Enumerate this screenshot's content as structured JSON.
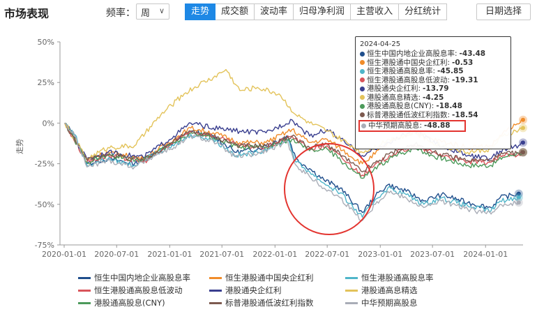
{
  "header": {
    "title": "市场表现",
    "freq_label": "频率：",
    "freq_value": "周",
    "tabs": [
      "走势",
      "成交额",
      "波动率",
      "归母净利润",
      "主营收入",
      "分红统计"
    ],
    "active_tab": 0,
    "date_button": "日期选择"
  },
  "chart_data": {
    "type": "line",
    "ylabel": "走势",
    "yticks": [
      "50%",
      "25%",
      "0%",
      "-25%",
      "-50%",
      "-75%"
    ],
    "ylim": [
      -75,
      50
    ],
    "xticks": [
      "2020-01-01",
      "2020-07-01",
      "2021-01-01",
      "2021-07-01",
      "2022-01-01",
      "2022-07-01",
      "2023-01-01",
      "2023-07-01",
      "2024-01-01"
    ],
    "x_range": [
      "2020-01-01",
      "2024-05-10"
    ],
    "grid": false,
    "legend_position": "bottom",
    "series": [
      {
        "name": "恒生中国内地企业高股息率",
        "color": "#1f4e8c",
        "points": [
          [
            "2020-01-03",
            0
          ],
          [
            "2020-02-07",
            -8
          ],
          [
            "2020-03-20",
            -25
          ],
          [
            "2020-06-01",
            -22
          ],
          [
            "2020-09-01",
            -25
          ],
          [
            "2020-11-20",
            -18
          ],
          [
            "2021-01-15",
            -12
          ],
          [
            "2021-03-15",
            -5
          ],
          [
            "2021-06-01",
            -8
          ],
          [
            "2021-08-20",
            -18
          ],
          [
            "2021-11-01",
            -16
          ],
          [
            "2022-02-15",
            -8
          ],
          [
            "2022-03-15",
            -22
          ],
          [
            "2022-05-01",
            -28
          ],
          [
            "2022-06-20",
            -35
          ],
          [
            "2022-08-15",
            -40
          ],
          [
            "2022-10-31",
            -55
          ],
          [
            "2022-12-15",
            -45
          ],
          [
            "2023-01-27",
            -38
          ],
          [
            "2023-04-01",
            -42
          ],
          [
            "2023-06-01",
            -48
          ],
          [
            "2023-08-01",
            -44
          ],
          [
            "2023-10-31",
            -49
          ],
          [
            "2024-01-20",
            -52
          ],
          [
            "2024-02-20",
            -46
          ],
          [
            "2024-04-25",
            -43.48
          ]
        ]
      },
      {
        "name": "恒生港股通中国央企红利",
        "color": "#f08c2a",
        "points": [
          [
            "2020-01-03",
            0
          ],
          [
            "2020-03-20",
            -22
          ],
          [
            "2020-06-01",
            -18
          ],
          [
            "2020-10-01",
            -22
          ],
          [
            "2021-01-15",
            -10
          ],
          [
            "2021-03-15",
            -3
          ],
          [
            "2021-06-01",
            -6
          ],
          [
            "2021-09-01",
            -12
          ],
          [
            "2021-12-01",
            -12
          ],
          [
            "2022-03-01",
            -4
          ],
          [
            "2022-05-01",
            -12
          ],
          [
            "2022-07-01",
            -10
          ],
          [
            "2022-10-31",
            -25
          ],
          [
            "2023-02-01",
            -12
          ],
          [
            "2023-05-01",
            -5
          ],
          [
            "2023-07-01",
            -10
          ],
          [
            "2023-10-31",
            -15
          ],
          [
            "2024-01-20",
            -14
          ],
          [
            "2024-03-01",
            -6
          ],
          [
            "2024-04-25",
            -0.53
          ],
          [
            "2024-05-10",
            2
          ]
        ]
      },
      {
        "name": "恒生港股通高股息率",
        "color": "#4fb5c9",
        "points": [
          [
            "2020-01-03",
            0
          ],
          [
            "2020-02-07",
            -7
          ],
          [
            "2020-03-20",
            -26
          ],
          [
            "2020-06-01",
            -22
          ],
          [
            "2020-09-01",
            -26
          ],
          [
            "2020-11-20",
            -18
          ],
          [
            "2021-01-15",
            -14
          ],
          [
            "2021-03-15",
            -7
          ],
          [
            "2021-06-01",
            -10
          ],
          [
            "2021-08-20",
            -20
          ],
          [
            "2021-11-01",
            -18
          ],
          [
            "2022-02-15",
            -10
          ],
          [
            "2022-03-15",
            -24
          ],
          [
            "2022-05-01",
            -30
          ],
          [
            "2022-06-20",
            -37
          ],
          [
            "2022-08-15",
            -43
          ],
          [
            "2022-10-31",
            -58
          ],
          [
            "2022-12-15",
            -47
          ],
          [
            "2023-01-27",
            -40
          ],
          [
            "2023-04-01",
            -44
          ],
          [
            "2023-06-01",
            -50
          ],
          [
            "2023-08-01",
            -46
          ],
          [
            "2023-10-31",
            -51
          ],
          [
            "2024-01-20",
            -54
          ],
          [
            "2024-02-20",
            -48
          ],
          [
            "2024-04-25",
            -45.85
          ]
        ]
      },
      {
        "name": "恒生港股通高股息低波动",
        "color": "#d9545a",
        "points": [
          [
            "2020-01-03",
            0
          ],
          [
            "2020-03-20",
            -24
          ],
          [
            "2020-06-01",
            -20
          ],
          [
            "2020-10-01",
            -24
          ],
          [
            "2021-01-15",
            -12
          ],
          [
            "2021-03-15",
            -5
          ],
          [
            "2021-06-01",
            -8
          ],
          [
            "2021-09-01",
            -14
          ],
          [
            "2021-12-01",
            -15
          ],
          [
            "2022-03-01",
            -8
          ],
          [
            "2022-05-01",
            -16
          ],
          [
            "2022-07-01",
            -14
          ],
          [
            "2022-10-31",
            -32
          ],
          [
            "2023-02-01",
            -20
          ],
          [
            "2023-05-01",
            -14
          ],
          [
            "2023-07-01",
            -18
          ],
          [
            "2023-10-31",
            -24
          ],
          [
            "2024-01-20",
            -24
          ],
          [
            "2024-03-01",
            -20
          ],
          [
            "2024-04-25",
            -19.31
          ],
          [
            "2024-05-10",
            -18
          ]
        ]
      },
      {
        "name": "港股通央企红利",
        "color": "#3a3f8f",
        "points": [
          [
            "2020-01-03",
            0
          ],
          [
            "2020-03-20",
            -22
          ],
          [
            "2020-06-01",
            -18
          ],
          [
            "2020-10-01",
            -21
          ],
          [
            "2021-01-15",
            -8
          ],
          [
            "2021-03-15",
            0
          ],
          [
            "2021-06-01",
            -3
          ],
          [
            "2021-09-01",
            -5
          ],
          [
            "2021-12-01",
            -6
          ],
          [
            "2022-03-01",
            2
          ],
          [
            "2022-05-01",
            -8
          ],
          [
            "2022-07-01",
            -4
          ],
          [
            "2022-10-31",
            -20
          ],
          [
            "2023-02-01",
            -12
          ],
          [
            "2023-05-01",
            -4
          ],
          [
            "2023-07-01",
            -12
          ],
          [
            "2023-10-31",
            -20
          ],
          [
            "2024-01-20",
            -22
          ],
          [
            "2024-03-01",
            -16
          ],
          [
            "2024-04-25",
            -13.79
          ],
          [
            "2024-05-10",
            -12
          ]
        ]
      },
      {
        "name": "港股通高息精选",
        "color": "#e3c35a",
        "points": [
          [
            "2020-01-03",
            0
          ],
          [
            "2020-03-20",
            -22
          ],
          [
            "2020-06-01",
            -15
          ],
          [
            "2020-09-01",
            -14
          ],
          [
            "2020-12-01",
            5
          ],
          [
            "2021-02-20",
            18
          ],
          [
            "2021-04-15",
            24
          ],
          [
            "2021-06-01",
            28
          ],
          [
            "2021-07-15",
            33
          ],
          [
            "2021-09-01",
            20
          ],
          [
            "2021-11-01",
            22
          ],
          [
            "2022-01-15",
            18
          ],
          [
            "2022-03-15",
            5
          ],
          [
            "2022-05-01",
            0
          ],
          [
            "2022-07-01",
            -5
          ],
          [
            "2022-10-31",
            -18
          ],
          [
            "2023-02-01",
            -10
          ],
          [
            "2023-05-01",
            -6
          ],
          [
            "2023-07-01",
            -12
          ],
          [
            "2023-10-31",
            -18
          ],
          [
            "2024-01-20",
            -16
          ],
          [
            "2024-03-01",
            -8
          ],
          [
            "2024-04-25",
            -4.25
          ],
          [
            "2024-05-10",
            -3
          ]
        ]
      },
      {
        "name": "港股通高股息(CNY)",
        "color": "#4c9a5b",
        "points": [
          [
            "2020-01-03",
            0
          ],
          [
            "2020-03-20",
            -24
          ],
          [
            "2020-06-01",
            -20
          ],
          [
            "2020-10-01",
            -23
          ],
          [
            "2021-01-15",
            -12
          ],
          [
            "2021-03-15",
            -6
          ],
          [
            "2021-06-01",
            -9
          ],
          [
            "2021-09-01",
            -15
          ],
          [
            "2021-12-01",
            -15
          ],
          [
            "2022-03-01",
            -10
          ],
          [
            "2022-05-01",
            -17
          ],
          [
            "2022-07-01",
            -16
          ],
          [
            "2022-10-31",
            -34
          ],
          [
            "2023-02-01",
            -22
          ],
          [
            "2023-05-01",
            -15
          ],
          [
            "2023-07-01",
            -20
          ],
          [
            "2023-10-31",
            -26
          ],
          [
            "2024-01-20",
            -26
          ],
          [
            "2024-03-01",
            -21
          ],
          [
            "2024-04-25",
            -18.48
          ],
          [
            "2024-05-10",
            -18
          ]
        ]
      },
      {
        "name": "标普港股通低波红利指数",
        "color": "#7d5a4f",
        "points": [
          [
            "2020-01-03",
            0
          ],
          [
            "2020-03-20",
            -23
          ],
          [
            "2020-06-01",
            -19
          ],
          [
            "2020-10-01",
            -23
          ],
          [
            "2021-01-15",
            -11
          ],
          [
            "2021-03-15",
            -5
          ],
          [
            "2021-06-01",
            -8
          ],
          [
            "2021-09-01",
            -14
          ],
          [
            "2021-12-01",
            -14
          ],
          [
            "2022-03-01",
            -8
          ],
          [
            "2022-05-01",
            -15
          ],
          [
            "2022-07-01",
            -13
          ],
          [
            "2022-10-31",
            -30
          ],
          [
            "2023-02-01",
            -19
          ],
          [
            "2023-05-01",
            -13
          ],
          [
            "2023-07-01",
            -18
          ],
          [
            "2023-10-31",
            -23
          ],
          [
            "2024-01-20",
            -23
          ],
          [
            "2024-03-01",
            -19
          ],
          [
            "2024-04-25",
            -18.54
          ],
          [
            "2024-05-10",
            -18
          ]
        ]
      },
      {
        "name": "中华预期高股息",
        "color": "#a9adb7",
        "points": [
          [
            "2020-01-03",
            0
          ],
          [
            "2020-02-07",
            -8
          ],
          [
            "2020-03-20",
            -27
          ],
          [
            "2020-06-01",
            -23
          ],
          [
            "2020-09-01",
            -27
          ],
          [
            "2020-11-20",
            -19
          ],
          [
            "2021-01-15",
            -15
          ],
          [
            "2021-03-15",
            -8
          ],
          [
            "2021-06-01",
            -11
          ],
          [
            "2021-08-20",
            -21
          ],
          [
            "2021-11-01",
            -19
          ],
          [
            "2022-02-15",
            -12
          ],
          [
            "2022-03-15",
            -26
          ],
          [
            "2022-05-01",
            -33
          ],
          [
            "2022-06-20",
            -40
          ],
          [
            "2022-08-15",
            -46
          ],
          [
            "2022-10-31",
            -60
          ],
          [
            "2022-12-15",
            -50
          ],
          [
            "2023-01-27",
            -42
          ],
          [
            "2023-04-01",
            -46
          ],
          [
            "2023-06-01",
            -52
          ],
          [
            "2023-08-01",
            -48
          ],
          [
            "2023-10-31",
            -53
          ],
          [
            "2024-01-20",
            -56
          ],
          [
            "2024-02-20",
            -50
          ],
          [
            "2024-04-25",
            -48.88
          ]
        ]
      }
    ],
    "tooltip": {
      "date": "2024-04-25",
      "rows": [
        {
          "name": "恒生中国内地企业高股息率",
          "value": "-43.48",
          "color": "#1f4e8c"
        },
        {
          "name": "恒生港股通中国央企红利",
          "value": "-0.53",
          "color": "#f08c2a"
        },
        {
          "name": "恒生港股通高股息率",
          "value": "-45.85",
          "color": "#4fb5c9"
        },
        {
          "name": "恒生港股通高股息低波动",
          "value": "-19.31",
          "color": "#d9545a"
        },
        {
          "name": "港股通央企红利",
          "value": "-13.79",
          "color": "#3a3f8f"
        },
        {
          "name": "港股通高息精选",
          "value": "-4.25",
          "color": "#e3c35a"
        },
        {
          "name": "港股通高股息(CNY)",
          "value": "-18.48",
          "color": "#4c9a5b"
        },
        {
          "name": "标普港股通低波红利指数",
          "value": "-18.54",
          "color": "#7d5a4f"
        },
        {
          "name": "中华预期高股息",
          "value": "-48.88",
          "color": "#a9adb7"
        }
      ],
      "highlighted_row": 8
    },
    "annotation_color": "#e3342f"
  }
}
